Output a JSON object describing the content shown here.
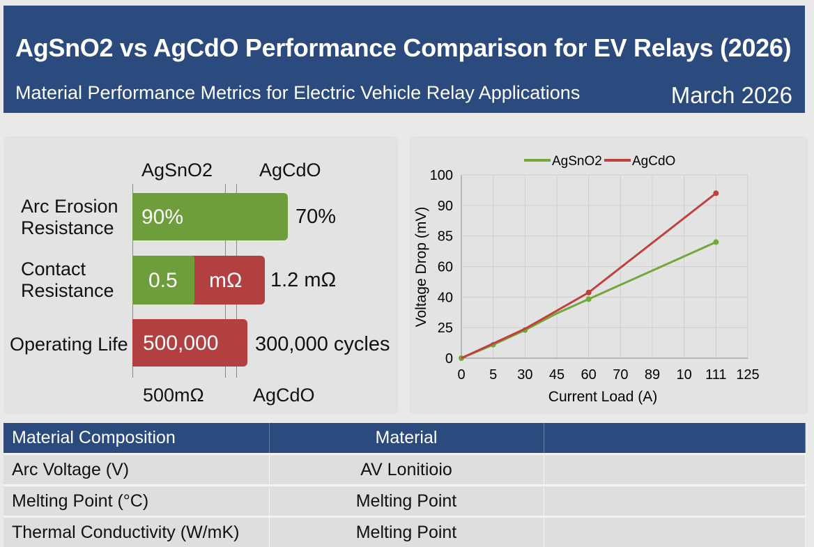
{
  "header": {
    "title": "AgSnO2 vs AgCdO Performance Comparison for EV Relays (2026)",
    "subtitle": "Material Performance Metrics for Electric Vehicle Relay Applications",
    "date": "March 2026"
  },
  "bar_panel": {
    "col_headers": [
      "AgSnO2",
      "AgCdO"
    ],
    "rows": [
      {
        "label": "Arc Erosion Resistance",
        "bar_text": "90%",
        "outside_text": "70%"
      },
      {
        "label": "Contact Resistance",
        "bar_text_green": "0.5",
        "bar_text_red": "mΩ",
        "outside_text": "1.2 mΩ"
      },
      {
        "label": "Operating Life",
        "bar_text": "500,000",
        "outside_text": "300,000 cycles"
      }
    ],
    "footer": [
      "500mΩ",
      "AgCdO"
    ],
    "colors": {
      "agsno2": "#6e9e3c",
      "agcdo": "#b34040"
    }
  },
  "chart_data": {
    "type": "line",
    "title": "",
    "xlabel": "Current Load (A)",
    "ylabel": "Voltage Drop (mV)",
    "x_ticks": [
      "0",
      "5",
      "30",
      "45",
      "60",
      "70",
      "89",
      "10",
      "111",
      "125"
    ],
    "y_ticks": [
      "0",
      "25",
      "40",
      "60",
      "85",
      "90",
      "100"
    ],
    "grid": true,
    "legend": "top",
    "series": [
      {
        "name": "AgSnO2",
        "color": "#72a83c",
        "points": [
          [
            "0",
            0
          ],
          [
            "5",
            11
          ],
          [
            "30",
            23
          ],
          [
            "45",
            32
          ],
          [
            "60",
            39
          ],
          [
            "111",
            80
          ]
        ],
        "markers": [
          0,
          1,
          2,
          4,
          5
        ]
      },
      {
        "name": "AgCdO",
        "color": "#c0403c",
        "points": [
          [
            "0",
            0
          ],
          [
            "5",
            12
          ],
          [
            "30",
            24
          ],
          [
            "60",
            43
          ],
          [
            "111",
            94
          ]
        ],
        "markers": [
          3,
          4
        ]
      }
    ]
  },
  "table": {
    "headers": [
      "Material Composition",
      "Material",
      ""
    ],
    "rows": [
      [
        "Arc Voltage (V)",
        "AV Lonitioio",
        ""
      ],
      [
        "Melting Point (°C)",
        "Melting Point",
        ""
      ],
      [
        "Thermal Conductivity (W/mK)",
        "Melting Point",
        ""
      ]
    ]
  }
}
